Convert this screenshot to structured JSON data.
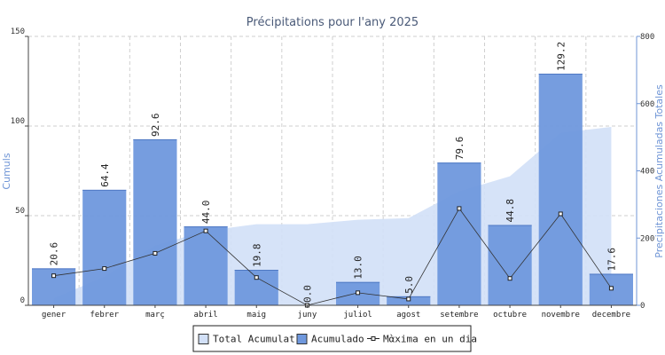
{
  "chart_data": {
    "type": "bar",
    "title": "Précipitations pour l'any 2025",
    "ylabel_left": "Cumuls",
    "ylabel_right": "Precipitaciones Acumuladas Totales",
    "ylim_left": [
      0,
      150
    ],
    "yticks_left": [
      0,
      50,
      100,
      150
    ],
    "ylim_right": [
      0,
      800
    ],
    "yticks_right": [
      0,
      200,
      400,
      600,
      800
    ],
    "grid": true,
    "legend_position": "bottom-center",
    "categories": [
      "gener",
      "febrer",
      "març",
      "abril",
      "maig",
      "juny",
      "juliol",
      "agost",
      "setembre",
      "octubre",
      "novembre",
      "decembre"
    ],
    "series": [
      {
        "name": "Total Acumulat",
        "type": "area",
        "axis": "right",
        "color": "#d2e0f7",
        "values": [
          20.6,
          85.0,
          177.6,
          221.6,
          241.4,
          241.4,
          254.4,
          259.4,
          339.0,
          383.8,
          513.0,
          530.6
        ]
      },
      {
        "name": "Acumulado",
        "type": "bar",
        "axis": "left",
        "color": "#6f98dd",
        "values": [
          20.6,
          64.4,
          92.6,
          44.0,
          19.8,
          0.0,
          13.0,
          5.0,
          79.6,
          44.8,
          129.2,
          17.6
        ],
        "labels": [
          "20.6",
          "64.4",
          "92.6",
          "44.0",
          "19.8",
          "0.0",
          "13.0",
          "5.0",
          "79.6",
          "44.8",
          "129.2",
          "17.6"
        ]
      },
      {
        "name": "Mὰxima en un dia",
        "type": "line",
        "axis": "left",
        "color": "#333333",
        "values": [
          16.5,
          20.5,
          29.0,
          41.5,
          15.5,
          0.0,
          7.0,
          3.5,
          54.0,
          15.0,
          51.0,
          9.5
        ]
      }
    ]
  }
}
